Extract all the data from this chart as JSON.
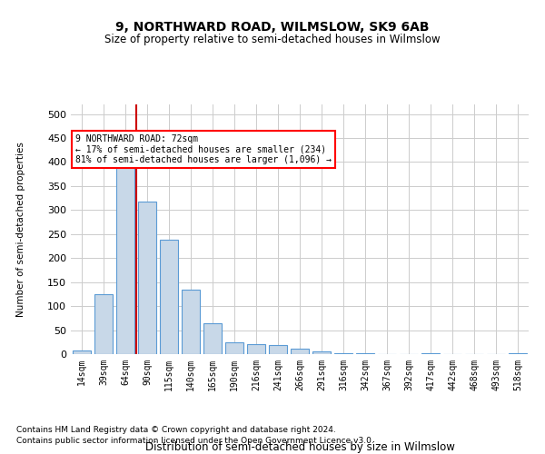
{
  "title1": "9, NORTHWARD ROAD, WILMSLOW, SK9 6AB",
  "title2": "Size of property relative to semi-detached houses in Wilmslow",
  "xlabel": "Distribution of semi-detached houses by size in Wilmslow",
  "ylabel": "Number of semi-detached properties",
  "footnote1": "Contains HM Land Registry data © Crown copyright and database right 2024.",
  "footnote2": "Contains public sector information licensed under the Open Government Licence v3.0.",
  "annotation_line1": "9 NORTHWARD ROAD: 72sqm",
  "annotation_line2": "← 17% of semi-detached houses are smaller (234)",
  "annotation_line3": "81% of semi-detached houses are larger (1,096) →",
  "bar_labels": [
    "14sqm",
    "39sqm",
    "64sqm",
    "90sqm",
    "115sqm",
    "140sqm",
    "165sqm",
    "190sqm",
    "216sqm",
    "241sqm",
    "266sqm",
    "291sqm",
    "316sqm",
    "342sqm",
    "367sqm",
    "392sqm",
    "417sqm",
    "442sqm",
    "468sqm",
    "493sqm",
    "518sqm"
  ],
  "bar_values": [
    7,
    124,
    401,
    318,
    238,
    135,
    64,
    25,
    20,
    19,
    11,
    6,
    2,
    1,
    0,
    0,
    1,
    0,
    0,
    0,
    1
  ],
  "bar_color": "#c8d8e8",
  "bar_edge_color": "#5b9bd5",
  "red_line_index": 2,
  "red_line_color": "#cc0000",
  "ylim": [
    0,
    520
  ],
  "yticks": [
    0,
    50,
    100,
    150,
    200,
    250,
    300,
    350,
    400,
    450,
    500
  ],
  "bg_color": "#ffffff",
  "grid_color": "#cccccc"
}
